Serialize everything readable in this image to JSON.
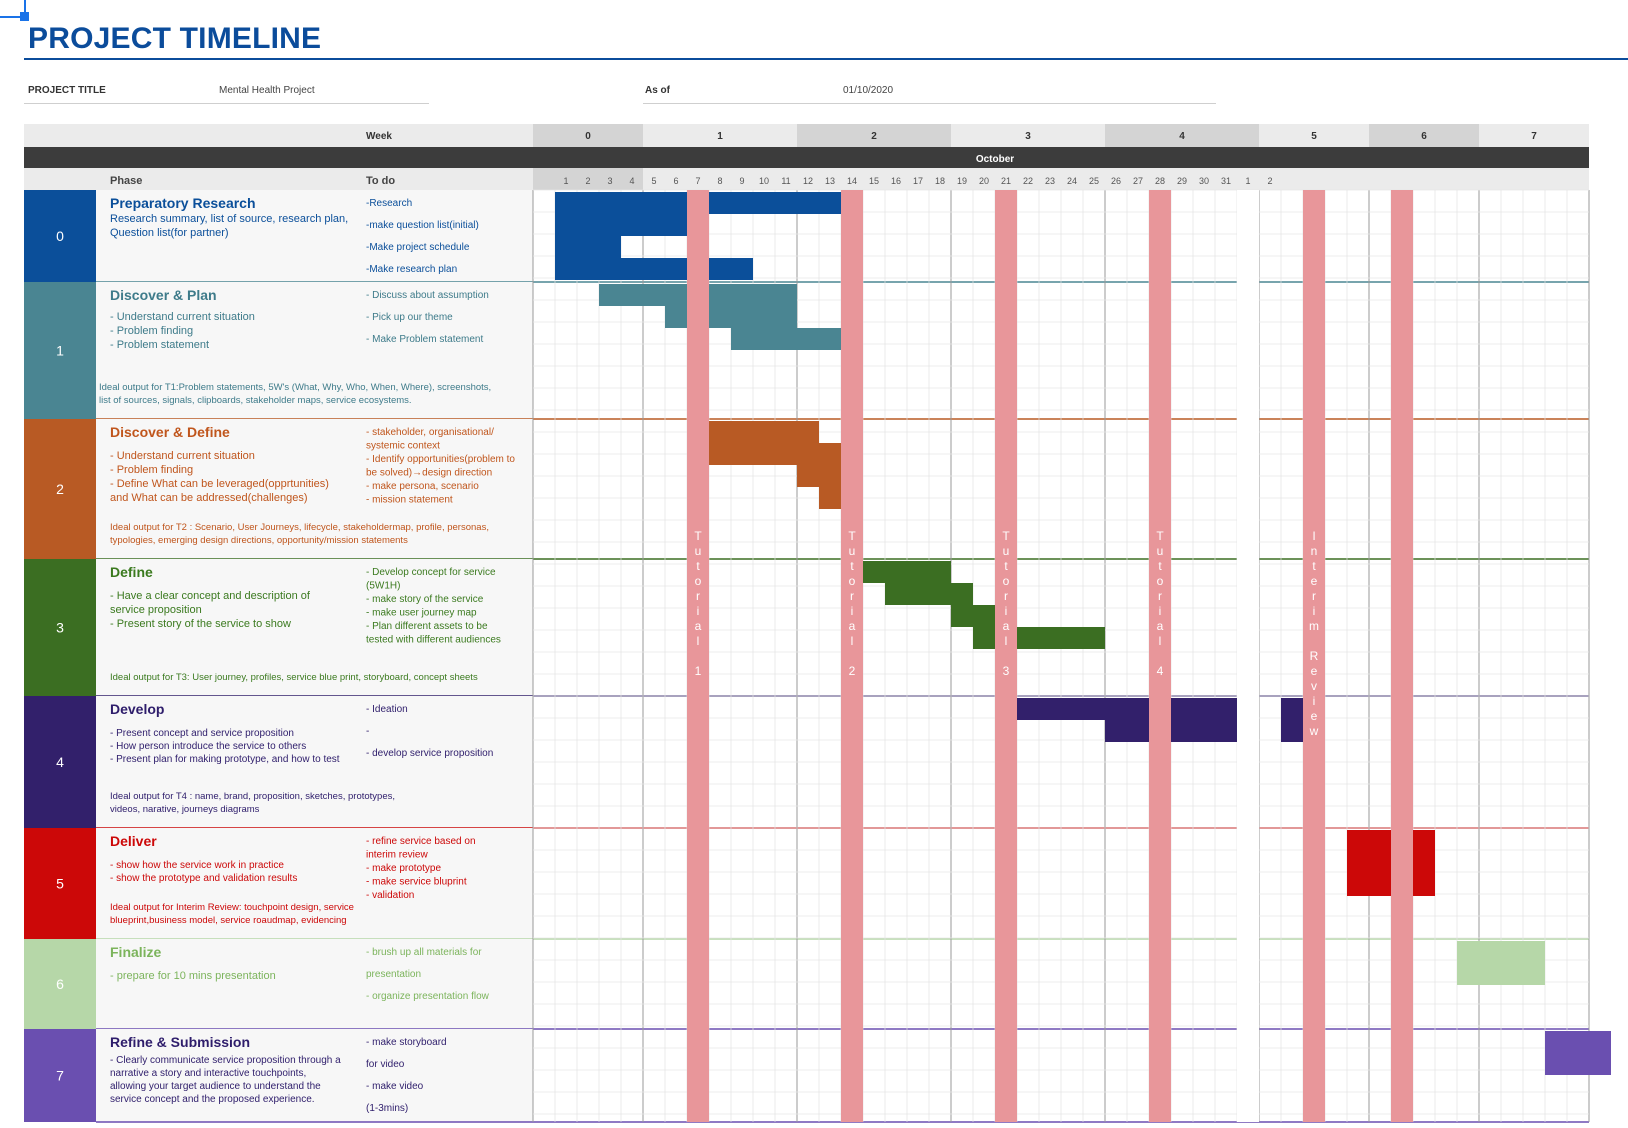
{
  "title": "PROJECT TIMELINE",
  "meta": {
    "project_title_label": "PROJECT TITLE",
    "project_title_value": "Mental Health Project",
    "as_of_label": "As of",
    "as_of_value": "01/10/2020"
  },
  "header": {
    "week_label": "Week",
    "month_label": "October",
    "phase_label": "Phase",
    "todo_label": "To do",
    "weeks": [
      "0",
      "1",
      "2",
      "3",
      "4",
      "5",
      "6",
      "7"
    ],
    "days": [
      "1",
      "2",
      "3",
      "4",
      "5",
      "6",
      "7",
      "8",
      "9",
      "10",
      "11",
      "12",
      "13",
      "14",
      "15",
      "16",
      "17",
      "18",
      "19",
      "20",
      "21",
      "22",
      "23",
      "24",
      "25",
      "26",
      "27",
      "28",
      "29",
      "30",
      "31",
      "1",
      "2"
    ]
  },
  "markers": [
    {
      "label": "Tutorial 1",
      "color": "#e8969a"
    },
    {
      "label": "Tutorial 2",
      "color": "#e8969a"
    },
    {
      "label": "Tutorial 3",
      "color": "#e8969a"
    },
    {
      "label": "Tutorial 4",
      "color": "#e8969a"
    },
    {
      "label": "Interim Review",
      "color": "#e8969a"
    },
    {
      "label": "",
      "color": "#e8969a"
    }
  ],
  "phases": [
    {
      "num": "0",
      "name": "Preparatory Research",
      "color": "#0b4f9a",
      "text_color": "#0b4f9a",
      "desc": [
        "Research summary, list of source, research plan,",
        "Question list(for partner)"
      ],
      "output": [],
      "todos": [
        "-Research",
        "-make question list(initial)",
        "-Make project schedule",
        "-Make research plan"
      ]
    },
    {
      "num": "1",
      "name": "Discover & Plan",
      "color": "#4a8592",
      "text_color": "#3e7b8a",
      "desc": [
        "- Understand current situation",
        "- Problem finding",
        "- Problem statement"
      ],
      "output": [
        "Ideal output for T1:Problem statements, 5W's (What, Why, Who, When, Where), screenshots,",
        "list of sources, signals, clipboards, stakeholder maps, service ecosystems."
      ],
      "todos": [
        "- Discuss about assumption",
        "- Pick up our theme",
        "- Make Problem statement"
      ]
    },
    {
      "num": "2",
      "name": "Discover & Define",
      "color": "#b85a24",
      "text_color": "#c0561d",
      "desc": [
        "- Understand current situation",
        "- Problem finding",
        "- Define What can be leveraged(opprtunities)",
        "   and What can be addressed(challenges)"
      ],
      "output": [
        "Ideal output for T2 : Scenario, User Journeys, lifecycle, stakeholdermap, profile, personas,",
        "typologies, emerging design directions, opportunity/mission statements"
      ],
      "todos": [
        "- stakeholder,  organisational/",
        "  systemic context",
        "- Identify opportunities(problem to",
        "be solved)→design direction",
        "- make persona, scenario",
        "- mission statement"
      ]
    },
    {
      "num": "3",
      "name": "Define",
      "color": "#3b6e22",
      "text_color": "#3b7a1f",
      "desc": [
        "- Have a clear concept and description of",
        "  service proposition",
        "- Present story of the service to show"
      ],
      "output": [
        "Ideal output for T3: User journey, profiles, service blue print,  storyboard, concept sheets"
      ],
      "todos": [
        "- Develop concept for service",
        "  (5W1H)",
        "- make story of  the service",
        "- make user journey map",
        "- Plan different assets to be",
        "  tested with different audiences"
      ]
    },
    {
      "num": "4",
      "name": "Develop",
      "color": "#32206b",
      "text_color": "#2e1d6b",
      "desc": [
        "- Present concept and service proposition",
        "- How person introduce the service to others",
        "- Present plan for making prototype, and how to test"
      ],
      "output": [
        "Ideal output for T4 : name, brand, proposition, sketches, prototypes,",
        "videos, narative, journeys diagrams"
      ],
      "todos": [
        "- Ideation",
        "-",
        "- develop service proposition"
      ]
    },
    {
      "num": "5",
      "name": "Deliver",
      "color": "#cc0808",
      "text_color": "#cc0808",
      "desc": [
        "- show how the service work in practice",
        "- show the prototype and validation results"
      ],
      "output": [
        "Ideal output for Interim Review: touchpoint design, service",
        "blueprint,business model, service roaudmap, evidencing"
      ],
      "todos": [
        "- refine service based on",
        "  interim review",
        "- make prototype",
        "- make service bluprint",
        "- validation"
      ]
    },
    {
      "num": "6",
      "name": "Finalize",
      "color": "#b6d7a8",
      "text_color": "#7cb45c",
      "desc": [
        "- prepare for 10 mins presentation"
      ],
      "output": [],
      "todos": [
        "- brush up all materials for",
        "presentation",
        "- organize presentation flow"
      ]
    },
    {
      "num": "7",
      "name": "Refine & Submission",
      "color": "#6a4fb0",
      "text_color": "#2e1d6b",
      "desc": [
        "- Clearly communicate service proposition through a",
        "narrative a story and interactive touchpoints,",
        "allowing your target audience to understand the",
        "service concept and the proposed experience."
      ],
      "output": [],
      "todos": [
        "- make storyboard",
        "  for video",
        "- make video",
        "  (1-3mins)"
      ]
    }
  ]
}
